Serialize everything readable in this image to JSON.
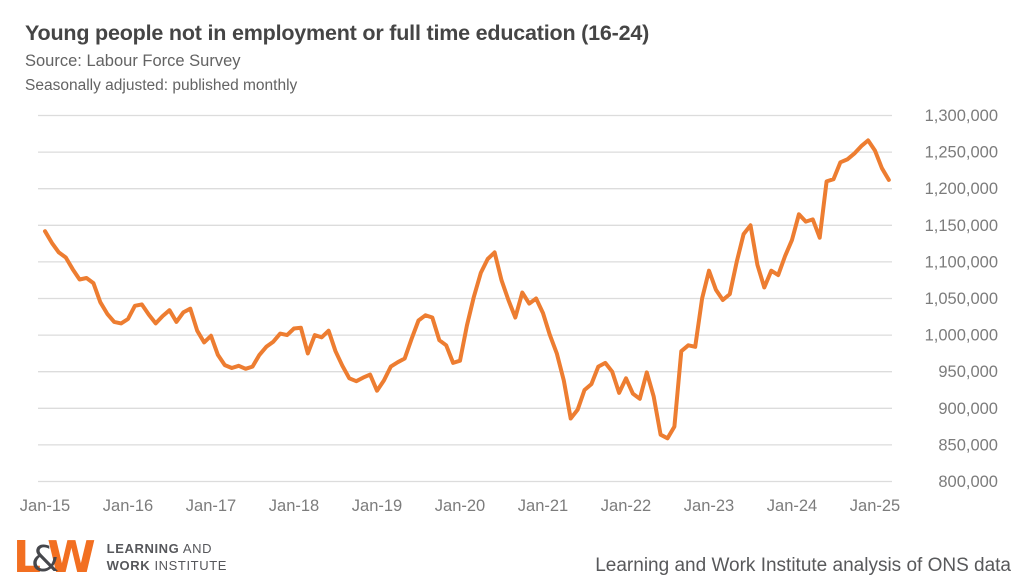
{
  "header": {
    "title": "Young people not in employment or full time education (16-24)",
    "source": "Source: Labour Force Survey",
    "note": "Seasonally adjusted: published monthly"
  },
  "chart_data": {
    "type": "line",
    "title": "Young people not in employment or full time education (16-24)",
    "xlabel": "",
    "ylabel": "",
    "ylim": [
      800000,
      1300000
    ],
    "y_step": 50000,
    "grid": "horizontal",
    "legend": "none",
    "grid_color": "#dcdcdc",
    "tick_color": "#7c7c7c",
    "x_tick_labels": [
      "Jan-15",
      "Jan-16",
      "Jan-17",
      "Jan-18",
      "Jan-19",
      "Jan-20",
      "Jan-21",
      "Jan-22",
      "Jan-23",
      "Jan-24",
      "Jan-25"
    ],
    "y_tick_labels": [
      "800,000",
      "850,000",
      "900,000",
      "950,000",
      "1,000,000",
      "1,050,000",
      "1,100,000",
      "1,150,000",
      "1,200,000",
      "1,250,000",
      "1,300,000"
    ],
    "series": [
      {
        "name": "Young people not in employment or full time education (16-24)",
        "color": "#ED7D31",
        "frequency": "monthly",
        "start": "Jan-15",
        "end": "Mar-25",
        "values": [
          1142000,
          1126000,
          1113000,
          1106000,
          1090000,
          1076000,
          1078000,
          1071000,
          1045000,
          1029000,
          1018000,
          1016000,
          1022000,
          1040000,
          1042000,
          1028000,
          1016000,
          1026000,
          1034000,
          1018000,
          1031000,
          1036000,
          1006000,
          990000,
          999000,
          973000,
          959000,
          955000,
          958000,
          954000,
          957000,
          973000,
          984000,
          991000,
          1002000,
          1000000,
          1009000,
          1010000,
          975000,
          1000000,
          997000,
          1006000,
          978000,
          958000,
          941000,
          937000,
          942000,
          946000,
          924000,
          938000,
          957000,
          963000,
          968000,
          995000,
          1020000,
          1027000,
          1024000,
          993000,
          986000,
          962000,
          965000,
          1013000,
          1052000,
          1085000,
          1104000,
          1113000,
          1075000,
          1048000,
          1024000,
          1058000,
          1043000,
          1050000,
          1030000,
          1000000,
          975000,
          938000,
          886000,
          898000,
          925000,
          933000,
          957000,
          962000,
          950000,
          921000,
          941000,
          920000,
          913000,
          949000,
          916000,
          864000,
          859000,
          875000,
          978000,
          986000,
          984000,
          1050000,
          1088000,
          1062000,
          1048000,
          1056000,
          1100000,
          1138000,
          1150000,
          1096000,
          1065000,
          1088000,
          1082000,
          1108000,
          1130000,
          1165000,
          1155000,
          1158000,
          1133000,
          1210000,
          1213000,
          1236000,
          1240000,
          1248000,
          1258000,
          1266000,
          1252000,
          1228000,
          1212000
        ]
      }
    ]
  },
  "footer": {
    "logo": {
      "l": "L",
      "amp": "&",
      "w": "W",
      "line1_bold": "LEARNING",
      "line1_rest": " AND",
      "line2_bold": "WORK",
      "line2_rest": " INSTITUTE"
    },
    "attribution": "Learning and Work Institute analysis of ONS data"
  }
}
